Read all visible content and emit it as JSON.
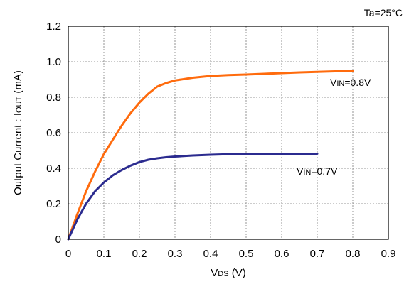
{
  "chart_data": {
    "type": "line",
    "condition": "Ta=25°C",
    "xlabel": {
      "main": "V",
      "sub": "DS",
      "unit": " (V)"
    },
    "ylabel": {
      "main": "Output Current : I",
      "sub": "OUT",
      "unit": " (mA)"
    },
    "xlim": [
      0,
      0.9
    ],
    "ylim": [
      0,
      1.2
    ],
    "xticks": [
      0,
      0.1,
      0.2,
      0.3,
      0.4,
      0.5,
      0.6,
      0.7,
      0.8,
      0.9
    ],
    "xtick_labels": [
      "0",
      "0.1",
      "0.2",
      "0.3",
      "0.4",
      "0.5",
      "0.6",
      "0.7",
      "0.8",
      "0.9"
    ],
    "yticks": [
      0,
      0.2,
      0.4,
      0.6,
      0.8,
      1.0,
      1.2
    ],
    "ytick_labels": [
      "0",
      "0.2",
      "0.4",
      "0.6",
      "0.8",
      "1.0",
      "1.2"
    ],
    "grid": true,
    "series": [
      {
        "label_main": "V",
        "label_sub": "IN",
        "label_value": "=0.8V",
        "color": "#ff6b0d",
        "x": [
          0,
          0.025,
          0.05,
          0.075,
          0.1,
          0.125,
          0.15,
          0.175,
          0.2,
          0.225,
          0.25,
          0.275,
          0.3,
          0.35,
          0.4,
          0.45,
          0.5,
          0.55,
          0.6,
          0.65,
          0.7,
          0.75,
          0.8
        ],
        "y": [
          0,
          0.14,
          0.27,
          0.38,
          0.48,
          0.56,
          0.64,
          0.71,
          0.77,
          0.82,
          0.86,
          0.88,
          0.895,
          0.91,
          0.92,
          0.925,
          0.928,
          0.932,
          0.936,
          0.94,
          0.943,
          0.946,
          0.948
        ]
      },
      {
        "label_main": "V",
        "label_sub": "IN",
        "label_value": "=0.7V",
        "color": "#2b2b8f",
        "x": [
          0,
          0.025,
          0.05,
          0.075,
          0.1,
          0.125,
          0.15,
          0.175,
          0.2,
          0.225,
          0.25,
          0.275,
          0.3,
          0.35,
          0.4,
          0.45,
          0.5,
          0.55,
          0.6,
          0.65,
          0.7
        ],
        "y": [
          0,
          0.11,
          0.2,
          0.27,
          0.32,
          0.36,
          0.39,
          0.415,
          0.435,
          0.448,
          0.456,
          0.462,
          0.466,
          0.472,
          0.476,
          0.479,
          0.481,
          0.482,
          0.482,
          0.482,
          0.482
        ]
      }
    ]
  }
}
